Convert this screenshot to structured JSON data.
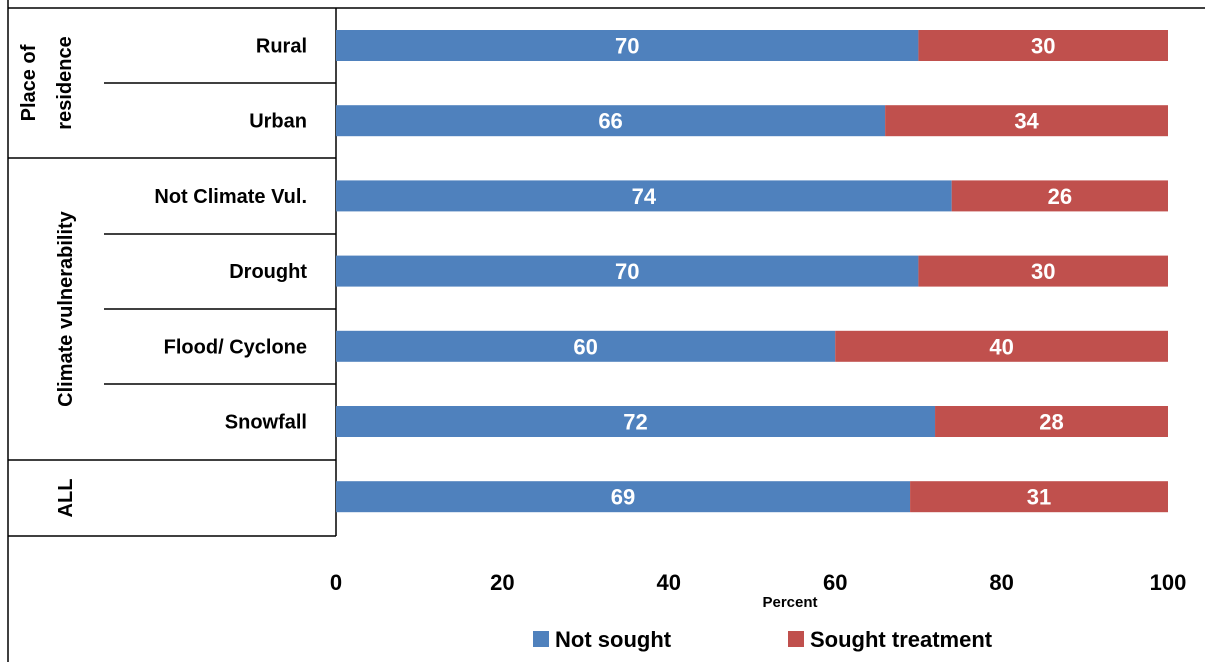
{
  "chart_data": {
    "type": "bar",
    "orientation": "horizontal",
    "stacked": true,
    "categories": [
      "Rural",
      "Urban",
      "Not Climate Vul.",
      "Drought",
      "Flood/ Cyclone",
      "Snowfall",
      ""
    ],
    "groups": [
      {
        "label_lines": [
          "Place of",
          "residence"
        ],
        "categories": [
          "Rural",
          "Urban"
        ]
      },
      {
        "label_lines": [
          "Climate vulnerability"
        ],
        "categories": [
          "Not Climate Vul.",
          "Drought",
          "Flood/ Cyclone",
          "Snowfall"
        ]
      },
      {
        "label_lines": [
          "ALL"
        ],
        "categories": [
          ""
        ]
      }
    ],
    "series": [
      {
        "name": "Not sought",
        "color": "#4f81bd",
        "values": [
          70,
          66,
          74,
          70,
          60,
          72,
          69
        ]
      },
      {
        "name": "Sought treatment",
        "color": "#c0504d",
        "values": [
          30,
          34,
          26,
          30,
          40,
          28,
          31
        ]
      }
    ],
    "xlabel": "Percent",
    "xlim": [
      0,
      100
    ],
    "xticks": [
      "0",
      "20",
      "40",
      "60",
      "80",
      "100"
    ],
    "grid": false,
    "legend": "bottom"
  }
}
